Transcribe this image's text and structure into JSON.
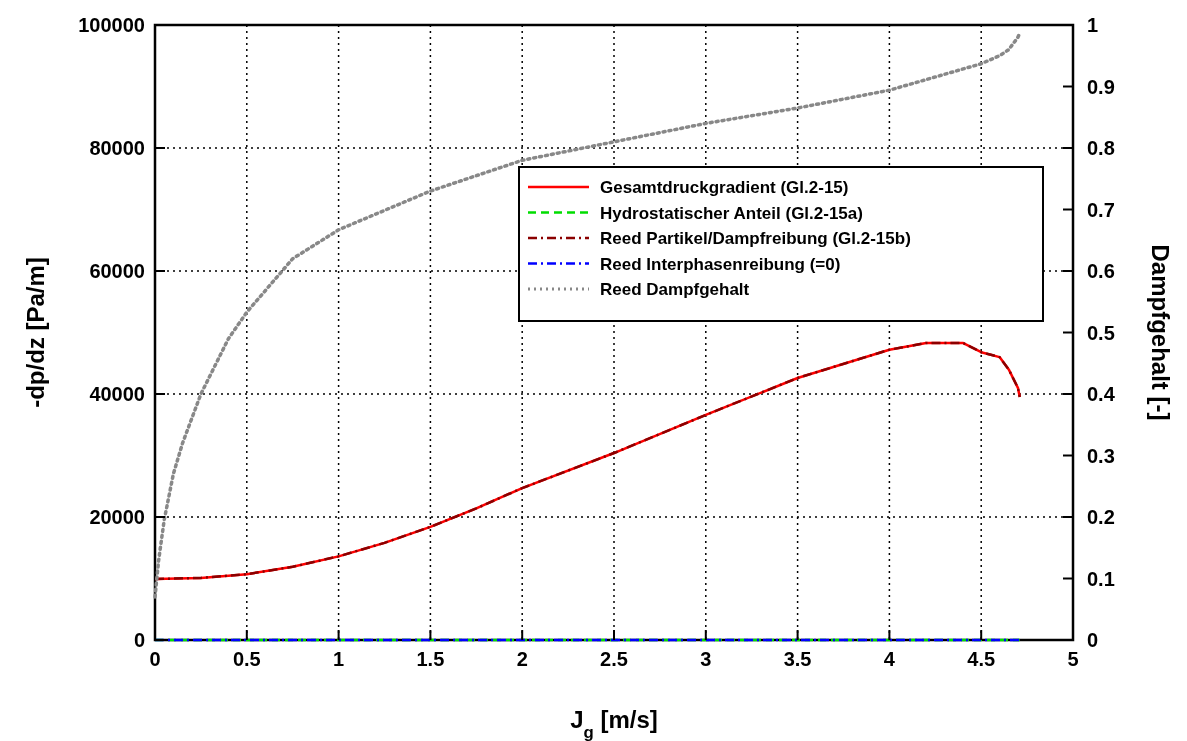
{
  "chart_data": {
    "type": "line",
    "xlabel": "J$_{g}$ [m/s]",
    "ylabel": "-dp/dz [Pa/m]",
    "y2label": "Dampfgehalt [-]",
    "xlim": [
      0,
      5
    ],
    "xticks": [
      0,
      0.5,
      1,
      1.5,
      2,
      2.5,
      3,
      3.5,
      4,
      4.5,
      5
    ],
    "ylim": [
      0,
      100000
    ],
    "yticks": [
      0,
      20000,
      40000,
      60000,
      80000,
      100000
    ],
    "y2lim": [
      0,
      1
    ],
    "y2ticks": [
      0,
      0.1,
      0.2,
      0.3,
      0.4,
      0.5,
      0.6,
      0.7,
      0.8,
      0.9,
      1
    ],
    "grid": true,
    "legend": "top right",
    "series": [
      {
        "name": "Gesamtdruckgradient (Gl.2-15)",
        "color": "#ff0000",
        "line_style": "solid",
        "x": [
          0,
          0.25,
          0.5,
          0.75,
          1,
          1.25,
          1.5,
          1.75,
          2,
          2.5,
          3,
          3.5,
          4,
          4.2,
          4.4,
          4.5,
          4.6,
          4.65,
          4.7,
          4.71
        ],
        "values": [
          9900,
          10100,
          10700,
          11900,
          13600,
          15800,
          18400,
          21400,
          24700,
          30400,
          36600,
          42600,
          47200,
          48300,
          48300,
          46800,
          46000,
          44000,
          41000,
          39500
        ]
      },
      {
        "name": "Hydrostatischer Anteil (Gl.2-15a)",
        "color": "#00dd00",
        "line_style": "dashed",
        "x": [
          0,
          4.71
        ],
        "values": [
          0,
          0
        ]
      },
      {
        "name": "Reed Partikel/Dampfreibung (Gl.2-15b)",
        "color": "#8b0000",
        "line_style": "dashdot",
        "x": [
          0,
          0.25,
          0.5,
          0.75,
          1,
          1.25,
          1.5,
          1.75,
          2,
          2.5,
          3,
          3.5,
          4,
          4.2,
          4.4,
          4.5,
          4.6,
          4.65,
          4.7,
          4.71
        ],
        "values": [
          9900,
          10100,
          10700,
          11900,
          13600,
          15800,
          18400,
          21400,
          24700,
          30400,
          36600,
          42600,
          47200,
          48300,
          48300,
          46800,
          46000,
          44000,
          41000,
          39500
        ]
      },
      {
        "name": "Reed Interphasenreibung (=0)",
        "color": "#0000ff",
        "line_style": "dashdot",
        "x": [
          0,
          4.71
        ],
        "values": [
          0,
          0
        ]
      },
      {
        "name": "Reed Dampfgehalt",
        "color": "#888888",
        "line_style": "dotted",
        "axis": "y2",
        "x": [
          0,
          0.02,
          0.05,
          0.1,
          0.15,
          0.2,
          0.25,
          0.3,
          0.4,
          0.5,
          0.75,
          1,
          1.5,
          2,
          2.5,
          3,
          3.5,
          4,
          4.5,
          4.6,
          4.65,
          4.7,
          4.71
        ],
        "values": [
          0.07,
          0.13,
          0.195,
          0.27,
          0.32,
          0.36,
          0.4,
          0.43,
          0.49,
          0.533,
          0.62,
          0.667,
          0.73,
          0.78,
          0.81,
          0.84,
          0.865,
          0.894,
          0.937,
          0.95,
          0.96,
          0.98,
          0.987
        ]
      }
    ]
  }
}
